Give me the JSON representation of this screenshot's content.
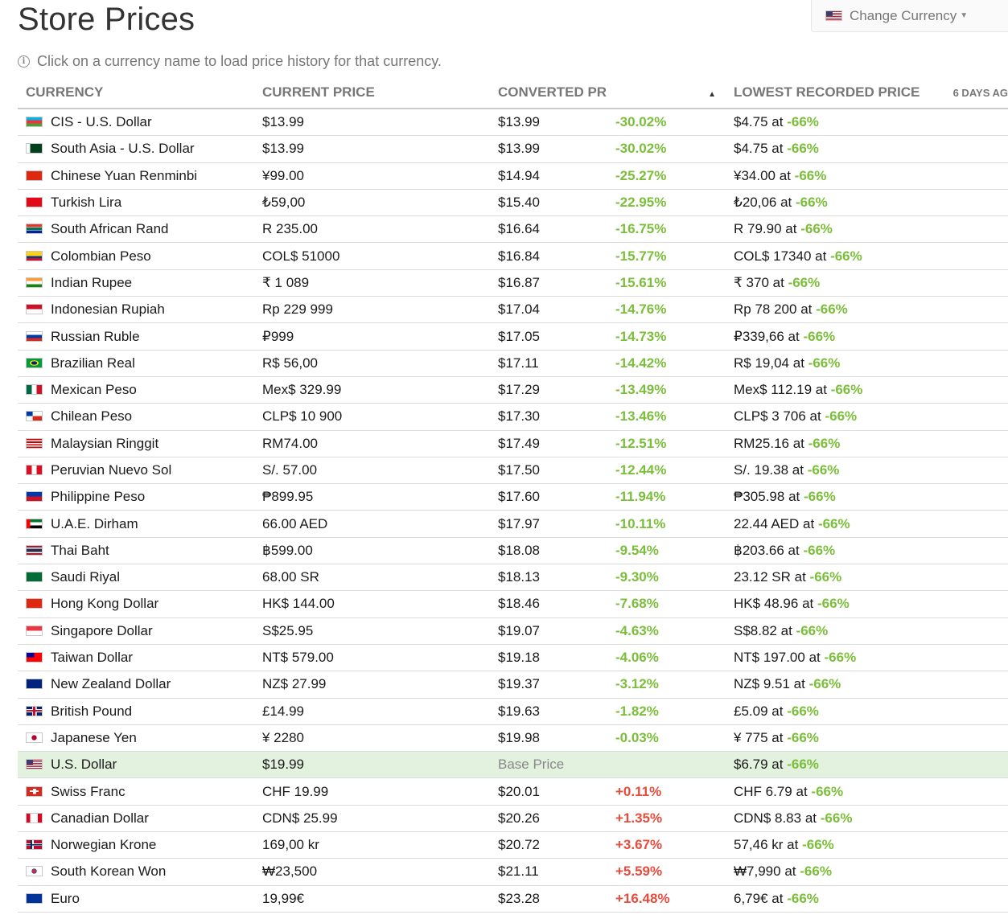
{
  "header": {
    "title": "Store Prices",
    "change_currency_label": "Change Currency",
    "info_text": "Click on a currency name to load price history for that currency."
  },
  "columns": {
    "currency": "CURRENCY",
    "current_price": "CURRENT PRICE",
    "converted_price": "CONVERTED PRICE",
    "lowest_price": "LOWEST RECORDED PRICE",
    "last_seen": "6 DAYS AG"
  },
  "connector": "at",
  "rows": [
    {
      "name": "CIS - U.S. Dollar",
      "price": "$13.99",
      "converted": "$13.99",
      "diff": "-30.02%",
      "lowest": "$4.75",
      "lowest_pct": "-66%",
      "flag": "az",
      "dir": "neg"
    },
    {
      "name": "South Asia - U.S. Dollar",
      "price": "$13.99",
      "converted": "$13.99",
      "diff": "-30.02%",
      "lowest": "$4.75",
      "lowest_pct": "-66%",
      "flag": "pk",
      "dir": "neg"
    },
    {
      "name": "Chinese Yuan Renminbi",
      "price": "¥99.00",
      "converted": "$14.94",
      "diff": "-25.27%",
      "lowest": "¥34.00",
      "lowest_pct": "-66%",
      "flag": "cn",
      "dir": "neg"
    },
    {
      "name": "Turkish Lira",
      "price": "₺59,00",
      "converted": "$15.40",
      "diff": "-22.95%",
      "lowest": "₺20,06",
      "lowest_pct": "-66%",
      "flag": "tr",
      "dir": "neg"
    },
    {
      "name": "South African Rand",
      "price": "R 235.00",
      "converted": "$16.64",
      "diff": "-16.75%",
      "lowest": "R 79.90",
      "lowest_pct": "-66%",
      "flag": "za",
      "dir": "neg"
    },
    {
      "name": "Colombian Peso",
      "price": "COL$ 51000",
      "converted": "$16.84",
      "diff": "-15.77%",
      "lowest": "COL$ 17340",
      "lowest_pct": "-66%",
      "flag": "co",
      "dir": "neg"
    },
    {
      "name": "Indian Rupee",
      "price": "₹ 1 089",
      "converted": "$16.87",
      "diff": "-15.61%",
      "lowest": "₹ 370",
      "lowest_pct": "-66%",
      "flag": "in",
      "dir": "neg"
    },
    {
      "name": "Indonesian Rupiah",
      "price": "Rp 229 999",
      "converted": "$17.04",
      "diff": "-14.76%",
      "lowest": "Rp 78 200",
      "lowest_pct": "-66%",
      "flag": "id",
      "dir": "neg"
    },
    {
      "name": "Russian Ruble",
      "price": "₽999",
      "converted": "$17.05",
      "diff": "-14.73%",
      "lowest": "₽339,66",
      "lowest_pct": "-66%",
      "flag": "ru",
      "dir": "neg"
    },
    {
      "name": "Brazilian Real",
      "price": "R$ 56,00",
      "converted": "$17.11",
      "diff": "-14.42%",
      "lowest": "R$ 19,04",
      "lowest_pct": "-66%",
      "flag": "br",
      "dir": "neg"
    },
    {
      "name": "Mexican Peso",
      "price": "Mex$ 329.99",
      "converted": "$17.29",
      "diff": "-13.49%",
      "lowest": "Mex$ 112.19",
      "lowest_pct": "-66%",
      "flag": "mx",
      "dir": "neg"
    },
    {
      "name": "Chilean Peso",
      "price": "CLP$ 10 900",
      "converted": "$17.30",
      "diff": "-13.46%",
      "lowest": "CLP$ 3 706",
      "lowest_pct": "-66%",
      "flag": "cl",
      "dir": "neg"
    },
    {
      "name": "Malaysian Ringgit",
      "price": "RM74.00",
      "converted": "$17.49",
      "diff": "-12.51%",
      "lowest": "RM25.16",
      "lowest_pct": "-66%",
      "flag": "my",
      "dir": "neg"
    },
    {
      "name": "Peruvian Nuevo Sol",
      "price": "S/. 57.00",
      "converted": "$17.50",
      "diff": "-12.44%",
      "lowest": "S/. 19.38",
      "lowest_pct": "-66%",
      "flag": "pe",
      "dir": "neg"
    },
    {
      "name": "Philippine Peso",
      "price": "₱899.95",
      "converted": "$17.60",
      "diff": "-11.94%",
      "lowest": "₱305.98",
      "lowest_pct": "-66%",
      "flag": "ph",
      "dir": "neg"
    },
    {
      "name": "U.A.E. Dirham",
      "price": "66.00 AED",
      "converted": "$17.97",
      "diff": "-10.11%",
      "lowest": "22.44 AED",
      "lowest_pct": "-66%",
      "flag": "ae",
      "dir": "neg"
    },
    {
      "name": "Thai Baht",
      "price": "฿599.00",
      "converted": "$18.08",
      "diff": "-9.54%",
      "lowest": "฿203.66",
      "lowest_pct": "-66%",
      "flag": "th",
      "dir": "neg"
    },
    {
      "name": "Saudi Riyal",
      "price": "68.00 SR",
      "converted": "$18.13",
      "diff": "-9.30%",
      "lowest": "23.12 SR",
      "lowest_pct": "-66%",
      "flag": "sa",
      "dir": "neg"
    },
    {
      "name": "Hong Kong Dollar",
      "price": "HK$ 144.00",
      "converted": "$18.46",
      "diff": "-7.68%",
      "lowest": "HK$ 48.96",
      "lowest_pct": "-66%",
      "flag": "hk",
      "dir": "neg"
    },
    {
      "name": "Singapore Dollar",
      "price": "S$25.95",
      "converted": "$19.07",
      "diff": "-4.63%",
      "lowest": "S$8.82",
      "lowest_pct": "-66%",
      "flag": "sg",
      "dir": "neg"
    },
    {
      "name": "Taiwan Dollar",
      "price": "NT$ 579.00",
      "converted": "$19.18",
      "diff": "-4.06%",
      "lowest": "NT$ 197.00",
      "lowest_pct": "-66%",
      "flag": "tw",
      "dir": "neg"
    },
    {
      "name": "New Zealand Dollar",
      "price": "NZ$ 27.99",
      "converted": "$19.37",
      "diff": "-3.12%",
      "lowest": "NZ$ 9.51",
      "lowest_pct": "-66%",
      "flag": "nz",
      "dir": "neg"
    },
    {
      "name": "British Pound",
      "price": "£14.99",
      "converted": "$19.63",
      "diff": "-1.82%",
      "lowest": "£5.09",
      "lowest_pct": "-66%",
      "flag": "gb",
      "dir": "neg"
    },
    {
      "name": "Japanese Yen",
      "price": "¥ 2280",
      "converted": "$19.98",
      "diff": "-0.03%",
      "lowest": "¥ 775",
      "lowest_pct": "-66%",
      "flag": "jp",
      "dir": "neg"
    },
    {
      "name": "U.S. Dollar",
      "price": "$19.99",
      "converted": "Base Price",
      "diff": "",
      "lowest": "$6.79",
      "lowest_pct": "-66%",
      "flag": "us",
      "dir": "base"
    },
    {
      "name": "Swiss Franc",
      "price": "CHF 19.99",
      "converted": "$20.01",
      "diff": "+0.11%",
      "lowest": "CHF 6.79",
      "lowest_pct": "-66%",
      "flag": "ch",
      "dir": "pos"
    },
    {
      "name": "Canadian Dollar",
      "price": "CDN$ 25.99",
      "converted": "$20.26",
      "diff": "+1.35%",
      "lowest": "CDN$ 8.83",
      "lowest_pct": "-66%",
      "flag": "ca",
      "dir": "pos"
    },
    {
      "name": "Norwegian Krone",
      "price": "169,00 kr",
      "converted": "$20.72",
      "diff": "+3.67%",
      "lowest": "57,46 kr",
      "lowest_pct": "-66%",
      "flag": "no",
      "dir": "pos"
    },
    {
      "name": "South Korean Won",
      "price": "₩23,500",
      "converted": "$21.11",
      "diff": "+5.59%",
      "lowest": "₩7,990",
      "lowest_pct": "-66%",
      "flag": "kr",
      "dir": "pos"
    },
    {
      "name": "Euro",
      "price": "19,99€",
      "converted": "$23.28",
      "diff": "+16.48%",
      "lowest": "6,79€",
      "lowest_pct": "-66%",
      "flag": "eu",
      "dir": "pos"
    }
  ],
  "colors": {
    "negative": "#7bbe3a",
    "positive": "#e74c3c",
    "base_row": "#e3f2df"
  }
}
